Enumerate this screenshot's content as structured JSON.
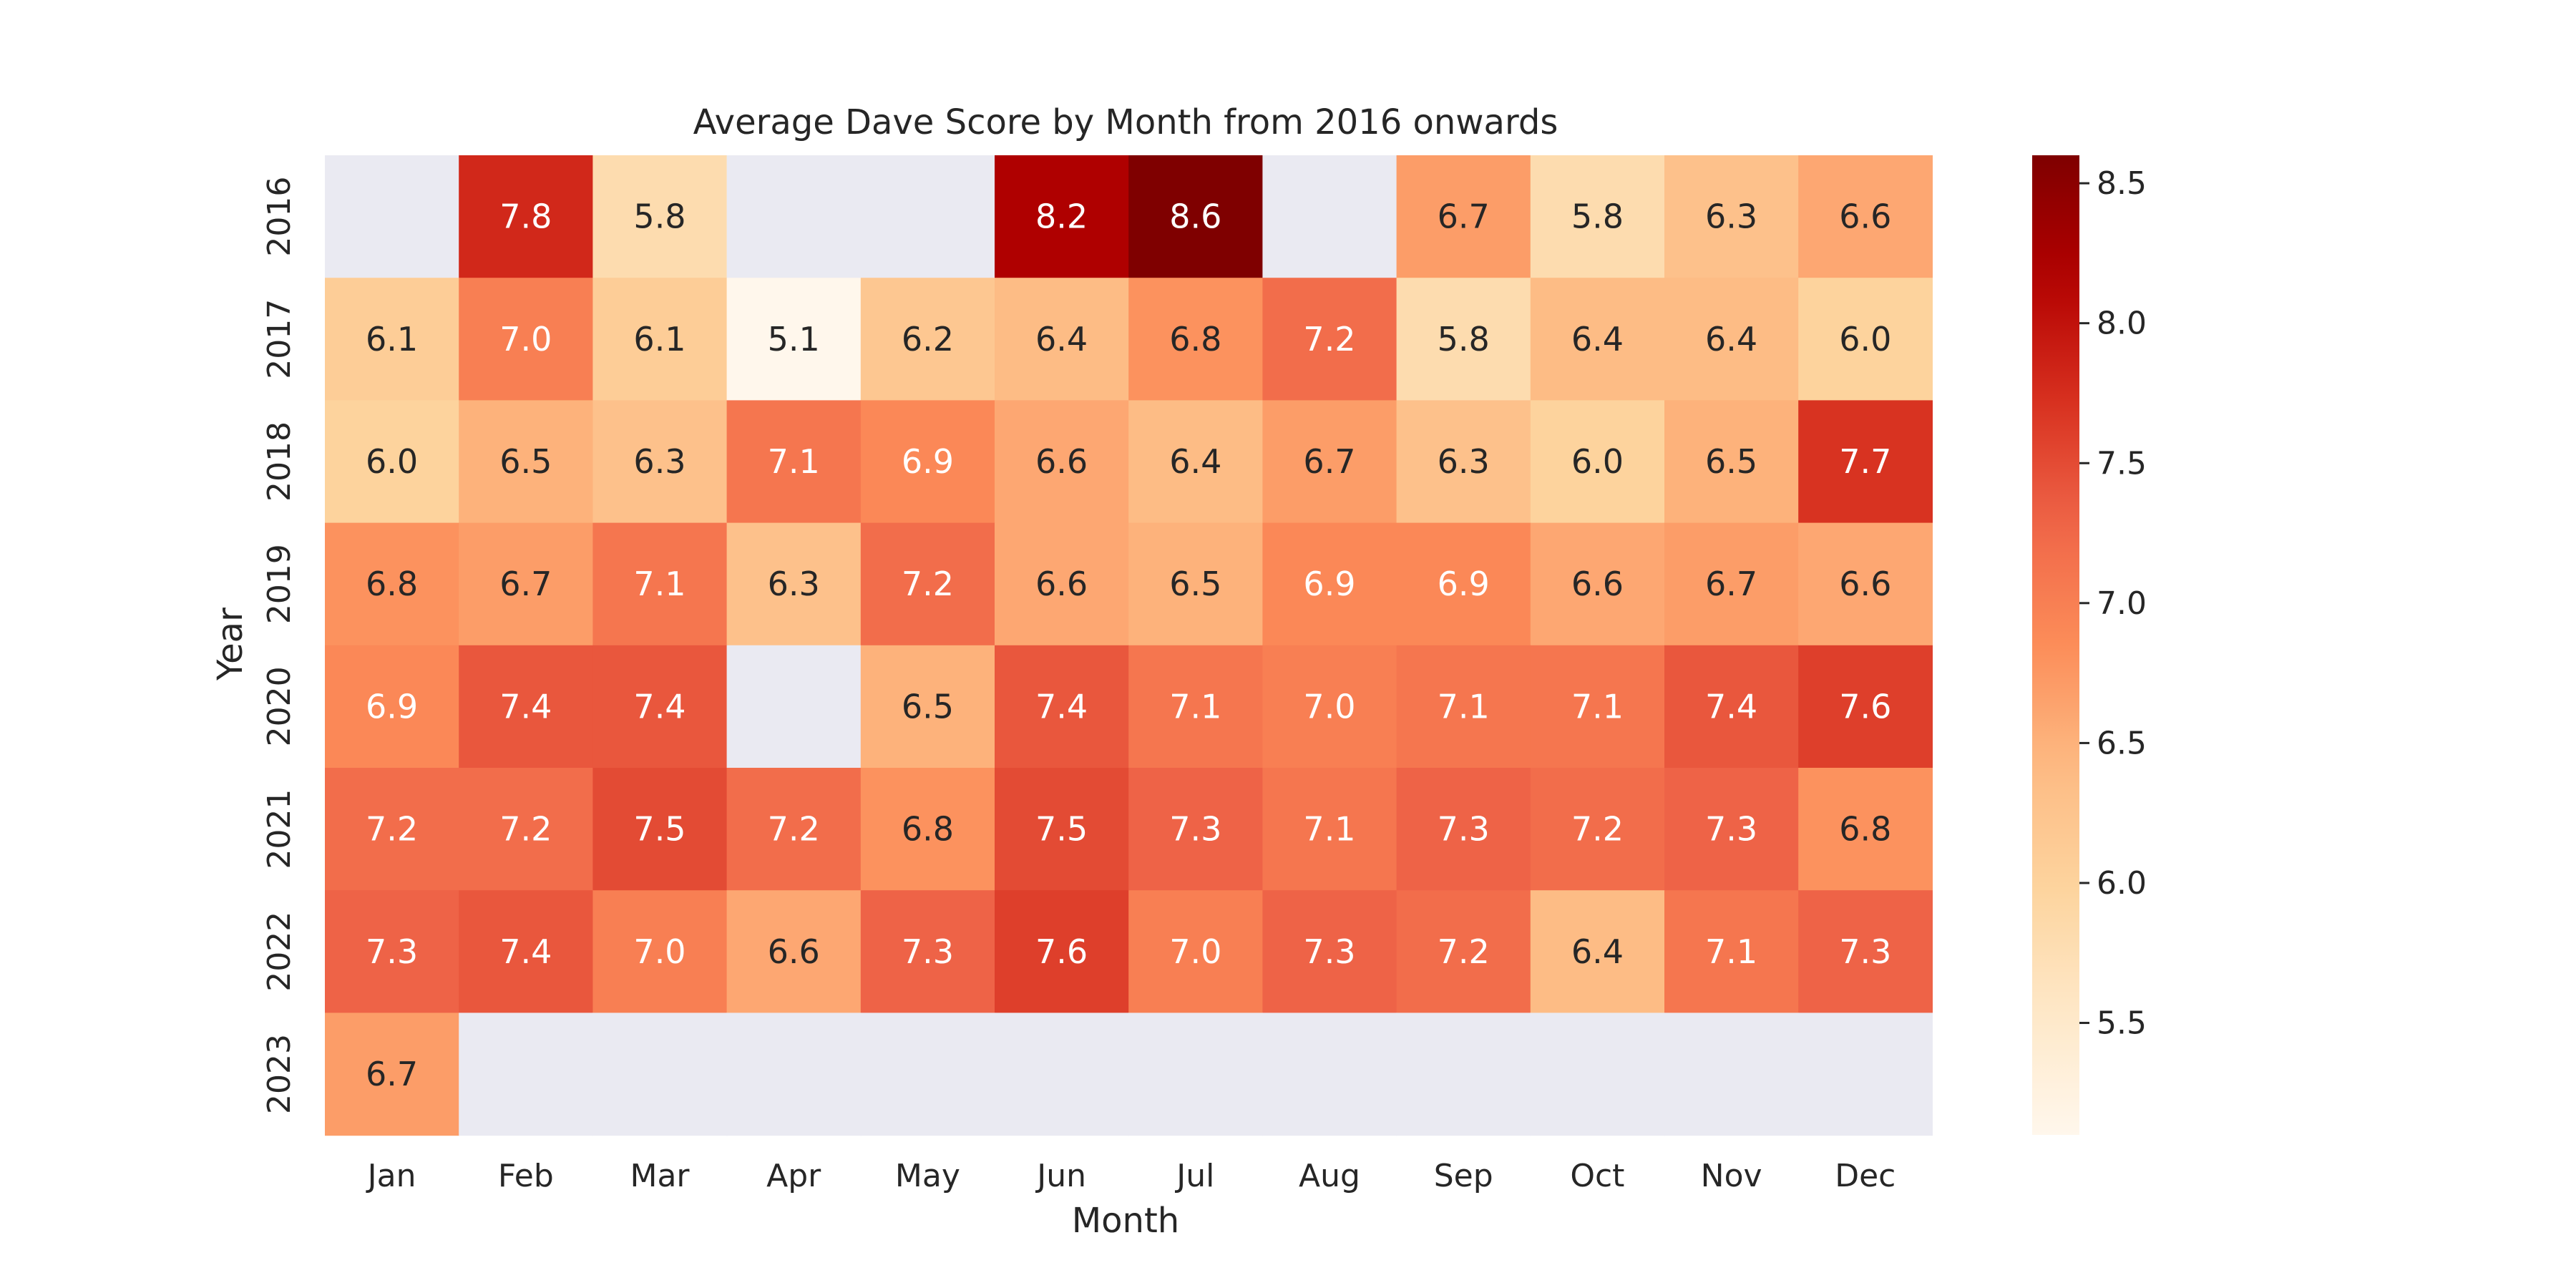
{
  "chart_data": {
    "type": "heatmap",
    "title": "Average Dave Score by Month from 2016 onwards",
    "xlabel": "Month",
    "ylabel": "Year",
    "x_categories": [
      "Jan",
      "Feb",
      "Mar",
      "Apr",
      "May",
      "Jun",
      "Jul",
      "Aug",
      "Sep",
      "Oct",
      "Nov",
      "Dec"
    ],
    "y_categories": [
      "2016",
      "2017",
      "2018",
      "2019",
      "2020",
      "2021",
      "2022",
      "2023"
    ],
    "values": [
      [
        null,
        7.8,
        5.8,
        null,
        null,
        8.2,
        8.6,
        null,
        6.7,
        5.8,
        6.3,
        6.6
      ],
      [
        6.1,
        7.0,
        6.1,
        5.1,
        6.2,
        6.4,
        6.8,
        7.2,
        5.8,
        6.4,
        6.4,
        6.0
      ],
      [
        6.0,
        6.5,
        6.3,
        7.1,
        6.9,
        6.6,
        6.4,
        6.7,
        6.3,
        6.0,
        6.5,
        7.7
      ],
      [
        6.8,
        6.7,
        7.1,
        6.3,
        7.2,
        6.6,
        6.5,
        6.9,
        6.9,
        6.6,
        6.7,
        6.6
      ],
      [
        6.9,
        7.4,
        7.4,
        null,
        6.5,
        7.4,
        7.1,
        7.0,
        7.1,
        7.1,
        7.4,
        7.6
      ],
      [
        7.2,
        7.2,
        7.5,
        7.2,
        6.8,
        7.5,
        7.3,
        7.1,
        7.3,
        7.2,
        7.3,
        6.8
      ],
      [
        7.3,
        7.4,
        7.0,
        6.6,
        7.3,
        7.6,
        7.0,
        7.3,
        7.2,
        6.4,
        7.1,
        7.3
      ],
      [
        6.7,
        null,
        null,
        null,
        null,
        null,
        null,
        null,
        null,
        null,
        null,
        null
      ]
    ],
    "colorbar": {
      "colormap": "OrRd",
      "vmin": 5.1,
      "vmax": 8.6,
      "ticks": [
        "5.5",
        "6.0",
        "6.5",
        "7.0",
        "7.5",
        "8.0",
        "8.5"
      ]
    },
    "missing_color": "#eaeaf2"
  }
}
